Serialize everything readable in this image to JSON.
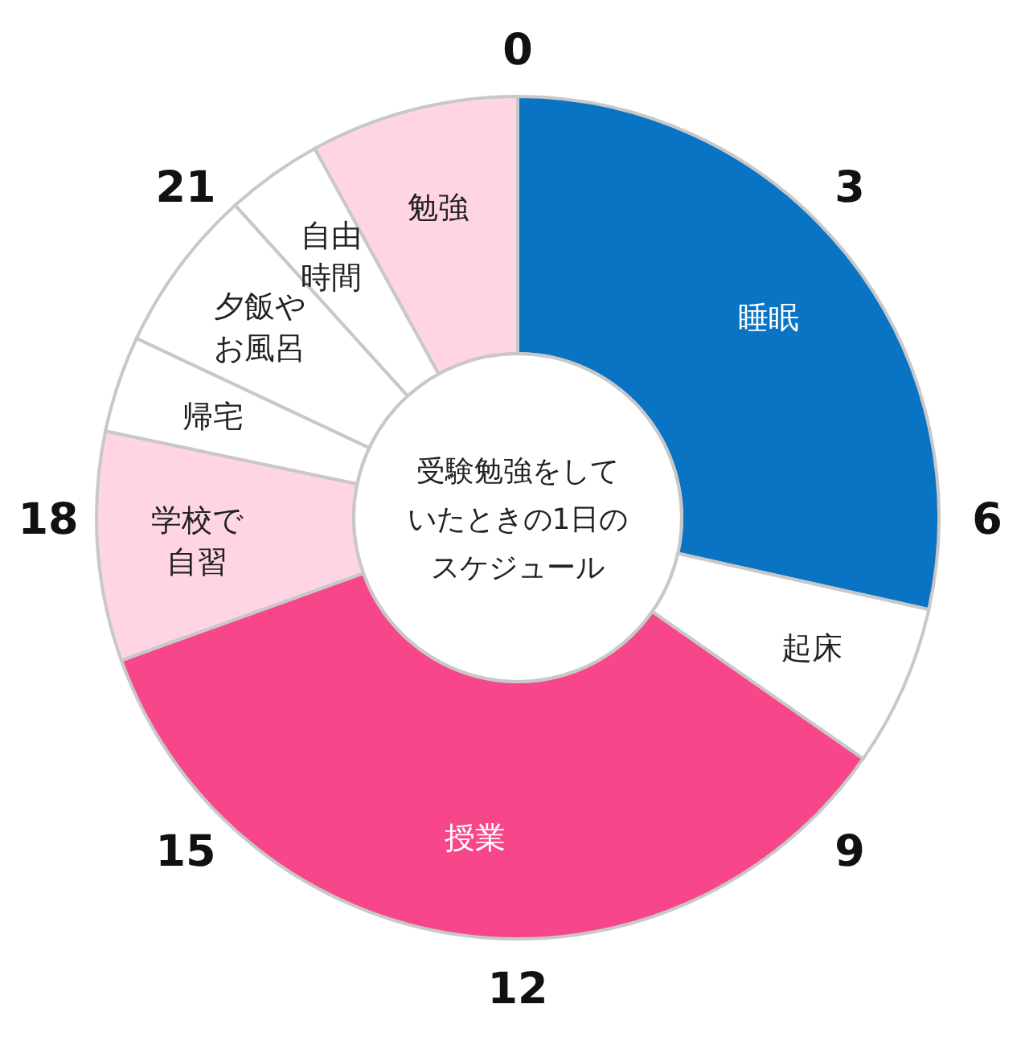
{
  "chart_data": {
    "type": "donut",
    "title": "受験勉強をしていたときの1日のスケジュール",
    "categories": [
      "睡眠",
      "起床",
      "授業",
      "学校で自習",
      "帰宅",
      "夕飯やお風呂",
      "自由時間",
      "勉強"
    ],
    "values": [
      28.5,
      6.2,
      34.8,
      8.8,
      3.7,
      6.3,
      3.7,
      8.0
    ],
    "colors": [
      "#0a74c4",
      "#ffffff",
      "#f7468a",
      "#ffd5e6",
      "#ffffff",
      "#ffffff",
      "#ffffff",
      "#ffd5e6"
    ],
    "annotations": [
      "0",
      "3",
      "6",
      "9",
      "12",
      "15",
      "18",
      "21"
    ]
  }
}
